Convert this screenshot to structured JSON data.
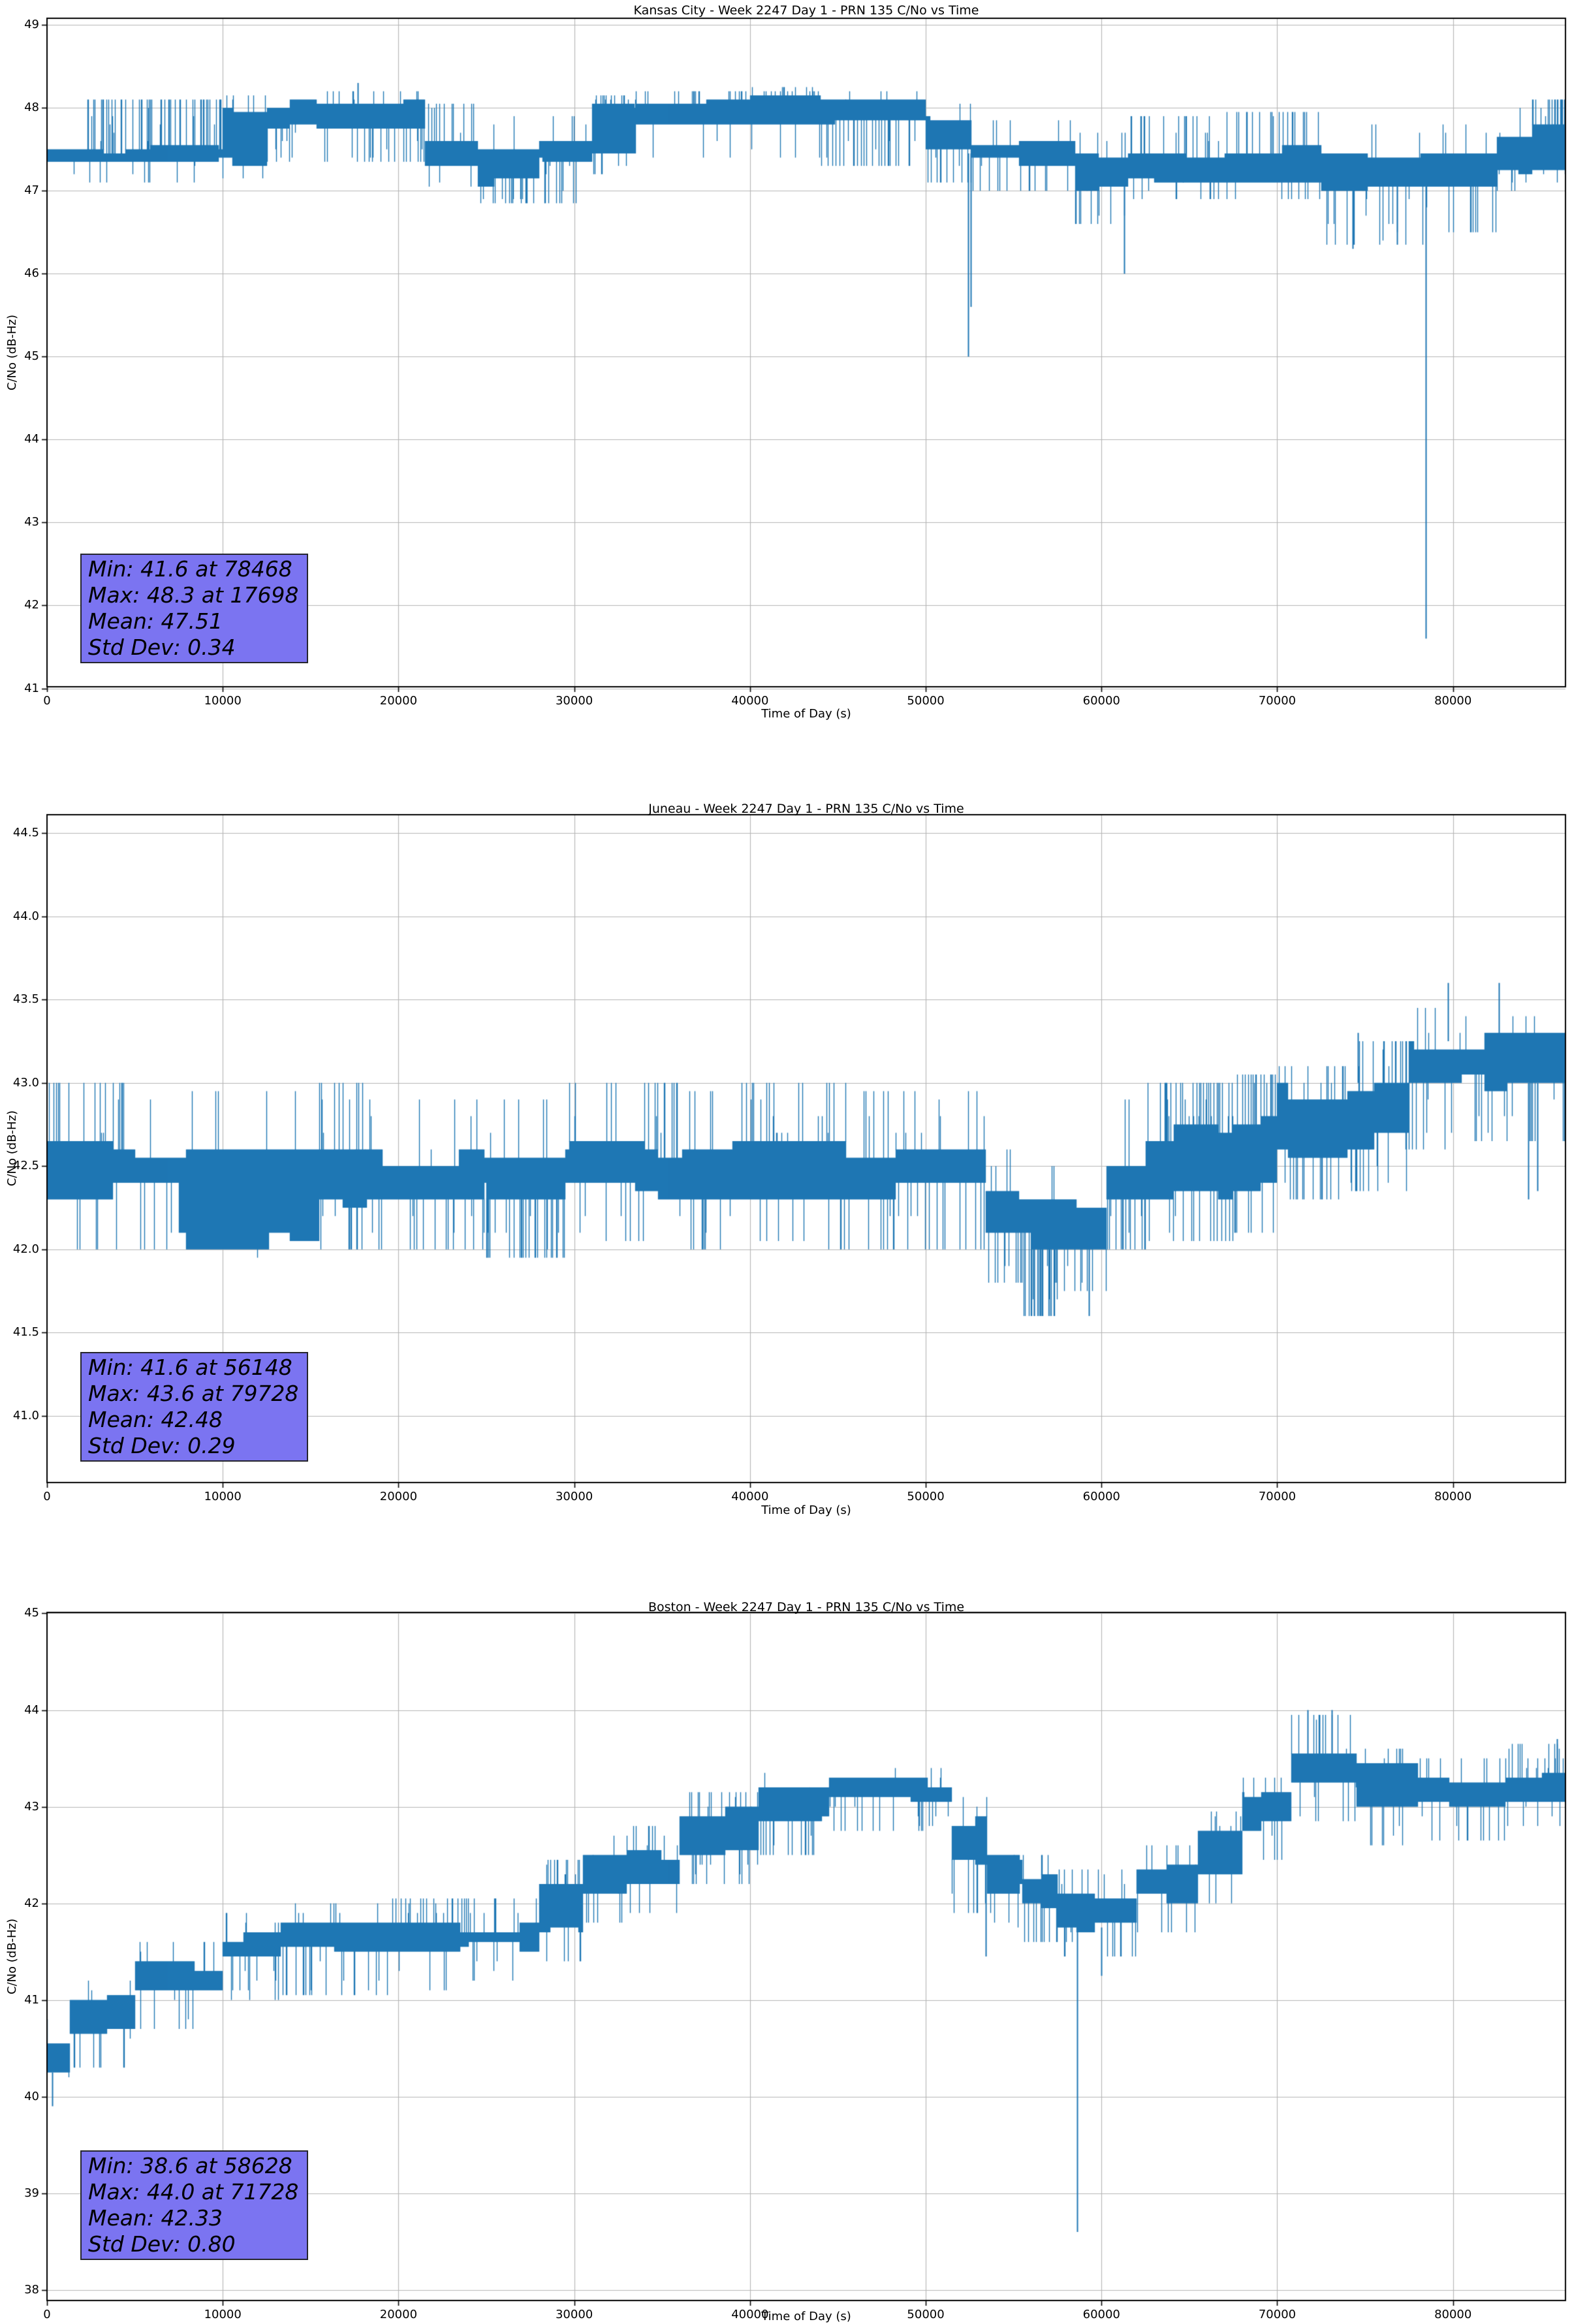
{
  "page": {
    "background": "#ffffff"
  },
  "chart_data": [
    {
      "type": "line",
      "title": "Kansas City - Week 2247 Day 1 - PRN 135 C/No vs Time",
      "xlabel": "Time of Day (s)",
      "ylabel": "C/No (dB-Hz)",
      "line_color": "#1f77b4",
      "grid": true,
      "grid_color": "#b4b4b4",
      "stats_box_color": "#7b74f1",
      "seed": 11,
      "xlim": [
        0,
        86400
      ],
      "ylim": [
        41.02,
        49.08
      ],
      "xticks": [
        "0",
        "10000",
        "20000",
        "30000",
        "40000",
        "50000",
        "60000",
        "70000",
        "80000"
      ],
      "yticks": [
        "41",
        "42",
        "43",
        "44",
        "45",
        "46",
        "47",
        "48",
        "49"
      ],
      "stats": {
        "min": 41.6,
        "min_time": 78468,
        "max": 48.3,
        "max_time": 17698,
        "mean": 47.51,
        "std_dev": 0.34
      },
      "stats_text": [
        "Min: 41.6 at 78468",
        "Max: 48.3 at 17698",
        "Mean: 47.51",
        "Std Dev: 0.34"
      ],
      "series_model": {
        "quantization_db": 0.1,
        "segments": [
          [
            0,
            2300,
            47.3,
            47.55,
            0.02,
            48.0,
            0.01,
            47.1
          ],
          [
            2300,
            10000,
            47.3,
            47.55,
            0.22,
            48.1,
            0.03,
            47.1
          ],
          [
            10000,
            12500,
            47.3,
            48.05,
            0.1,
            48.15,
            0.05,
            47.15
          ],
          [
            12500,
            17500,
            47.75,
            48.1,
            0.05,
            48.2,
            0.07,
            47.35
          ],
          [
            17500,
            21500,
            47.75,
            48.1,
            0.04,
            48.2,
            0.18,
            47.35
          ],
          [
            21500,
            24500,
            47.3,
            47.6,
            0.12,
            48.05,
            0.05,
            47.05
          ],
          [
            24500,
            28000,
            47.05,
            47.5,
            0.06,
            47.9,
            0.12,
            46.85
          ],
          [
            28000,
            31000,
            47.3,
            47.6,
            0.05,
            47.9,
            0.15,
            46.85
          ],
          [
            31000,
            33500,
            47.4,
            48.05,
            0.15,
            48.15,
            0.1,
            47.2
          ],
          [
            33500,
            40000,
            47.75,
            48.1,
            0.12,
            48.2,
            0.06,
            47.4
          ],
          [
            40000,
            44000,
            47.75,
            48.15,
            0.18,
            48.25,
            0.05,
            47.4
          ],
          [
            44000,
            50000,
            47.75,
            48.1,
            0.06,
            48.2,
            0.12,
            47.3
          ],
          [
            50000,
            52600,
            47.4,
            47.9,
            0.04,
            48.05,
            0.15,
            47.1
          ],
          [
            52600,
            58500,
            47.3,
            47.6,
            0.05,
            47.85,
            0.06,
            47.0
          ],
          [
            58500,
            61500,
            47.0,
            47.45,
            0.04,
            47.7,
            0.12,
            46.6
          ],
          [
            61500,
            67000,
            47.1,
            47.5,
            0.1,
            47.9,
            0.08,
            46.9
          ],
          [
            67000,
            72500,
            47.1,
            47.55,
            0.12,
            47.95,
            0.06,
            46.9
          ],
          [
            72500,
            78400,
            47.0,
            47.45,
            0.05,
            47.8,
            0.1,
            46.35
          ],
          [
            78400,
            82500,
            47.0,
            47.45,
            0.06,
            47.8,
            0.08,
            46.5
          ],
          [
            82500,
            84500,
            47.2,
            47.65,
            0.1,
            48.0,
            0.04,
            47.0
          ],
          [
            84500,
            86400,
            47.25,
            47.8,
            0.3,
            48.1,
            0.03,
            47.1
          ]
        ],
        "spikes": [
          [
            17698,
            48.3
          ],
          [
            52400,
            45.0
          ],
          [
            52560,
            45.6
          ],
          [
            61300,
            46.0
          ],
          [
            74300,
            46.3
          ],
          [
            76800,
            46.35
          ],
          [
            78468,
            41.6
          ]
        ]
      }
    },
    {
      "type": "line",
      "title": "Juneau - Week 2247 Day 1 - PRN 135 C/No vs Time",
      "xlabel": "Time of Day (s)",
      "ylabel": "C/No (dB-Hz)",
      "line_color": "#1f77b4",
      "grid": true,
      "grid_color": "#b4b4b4",
      "stats_box_color": "#7b74f1",
      "seed": 22,
      "xlim": [
        0,
        86400
      ],
      "ylim": [
        40.6,
        44.61
      ],
      "xticks": [
        "0",
        "10000",
        "20000",
        "30000",
        "40000",
        "50000",
        "60000",
        "70000",
        "80000"
      ],
      "yticks": [
        "41.0",
        "41.5",
        "42.0",
        "42.5",
        "43.0",
        "43.5",
        "44.0",
        "44.5"
      ],
      "stats": {
        "min": 41.6,
        "min_time": 56148,
        "max": 43.6,
        "max_time": 79728,
        "mean": 42.48,
        "std_dev": 0.29
      },
      "stats_text": [
        "Min: 41.6 at 56148",
        "Max: 43.6 at 79728",
        "Mean: 42.48",
        "Std Dev: 0.29"
      ],
      "series_model": {
        "quantization_db": 0.1,
        "segments": [
          [
            0,
            1200,
            42.3,
            42.65,
            0.05,
            43.0,
            0.02,
            42.1
          ],
          [
            1200,
            5000,
            42.3,
            42.65,
            0.12,
            43.0,
            0.04,
            42.0
          ],
          [
            5000,
            7500,
            42.3,
            42.6,
            0.03,
            42.9,
            0.1,
            42.0
          ],
          [
            7500,
            15500,
            42.0,
            42.6,
            0.03,
            42.95,
            0.02,
            41.95
          ],
          [
            15500,
            18200,
            42.25,
            42.6,
            0.18,
            43.0,
            0.1,
            42.0
          ],
          [
            18200,
            25000,
            42.3,
            42.6,
            0.04,
            42.9,
            0.08,
            42.0
          ],
          [
            25000,
            29500,
            42.2,
            42.6,
            0.03,
            42.9,
            0.25,
            41.95
          ],
          [
            29500,
            34000,
            42.3,
            42.65,
            0.06,
            43.0,
            0.06,
            42.05
          ],
          [
            34000,
            36000,
            42.3,
            42.6,
            0.15,
            43.0,
            0.05,
            42.05
          ],
          [
            36000,
            39000,
            42.3,
            42.6,
            0.05,
            42.95,
            0.1,
            42.0
          ],
          [
            39000,
            43500,
            42.3,
            42.65,
            0.12,
            43.0,
            0.05,
            42.05
          ],
          [
            43500,
            46000,
            42.3,
            42.65,
            0.15,
            43.0,
            0.08,
            42.0
          ],
          [
            46000,
            53400,
            42.3,
            42.65,
            0.05,
            42.95,
            0.12,
            42.0
          ],
          [
            53400,
            55300,
            42.0,
            42.4,
            0.03,
            42.6,
            0.15,
            41.8
          ],
          [
            55300,
            57600,
            42.0,
            42.35,
            0.02,
            42.6,
            0.3,
            41.6
          ],
          [
            57600,
            60300,
            42.0,
            42.35,
            0.03,
            42.6,
            0.1,
            41.75
          ],
          [
            60300,
            62500,
            42.3,
            42.6,
            0.05,
            42.9,
            0.15,
            42.0
          ],
          [
            62500,
            67500,
            42.3,
            42.75,
            0.25,
            43.0,
            0.1,
            42.05
          ],
          [
            67500,
            70000,
            42.35,
            42.8,
            0.3,
            43.05,
            0.08,
            42.1
          ],
          [
            70000,
            74000,
            42.55,
            43.0,
            0.15,
            43.1,
            0.15,
            42.3
          ],
          [
            74000,
            77500,
            42.6,
            43.05,
            0.12,
            43.25,
            0.12,
            42.35
          ],
          [
            77500,
            80500,
            42.9,
            43.3,
            0.08,
            43.45,
            0.1,
            42.6
          ],
          [
            80500,
            86400,
            42.95,
            43.3,
            0.05,
            43.4,
            0.08,
            42.65
          ]
        ],
        "spikes": [
          [
            56148,
            41.6
          ],
          [
            56600,
            41.6
          ],
          [
            59300,
            41.6
          ],
          [
            74600,
            43.3
          ],
          [
            79728,
            43.6
          ],
          [
            82600,
            43.6
          ],
          [
            84300,
            42.3
          ],
          [
            84800,
            42.35
          ]
        ]
      }
    },
    {
      "type": "line",
      "title": "Boston - Week 2247 Day 1 - PRN 135 C/No vs Time",
      "xlabel": "Time of Day (s)",
      "ylabel": "C/No (dB-Hz)",
      "line_color": "#1f77b4",
      "grid": true,
      "grid_color": "#b4b4b4",
      "stats_box_color": "#7b74f1",
      "seed": 33,
      "xlim": [
        0,
        86400
      ],
      "ylim": [
        37.89,
        45.01
      ],
      "xticks": [
        "0",
        "10000",
        "20000",
        "30000",
        "40000",
        "50000",
        "60000",
        "70000",
        "80000"
      ],
      "yticks": [
        "38",
        "39",
        "40",
        "41",
        "42",
        "43",
        "44",
        "45"
      ],
      "stats": {
        "min": 38.6,
        "min_time": 58628,
        "max": 44.0,
        "max_time": 71728,
        "mean": 42.33,
        "std_dev": 0.8
      },
      "stats_text": [
        "Min: 38.6 at 58628",
        "Max: 44.0 at 71728",
        "Mean: 42.33",
        "Std Dev: 0.80"
      ],
      "series_model": {
        "quantization_db": 0.1,
        "segments": [
          [
            0,
            1300,
            40.2,
            40.6,
            0.02,
            40.8,
            0.03,
            39.95
          ],
          [
            1300,
            5000,
            40.6,
            41.05,
            0.06,
            41.2,
            0.08,
            40.3
          ],
          [
            5000,
            10000,
            41.0,
            41.4,
            0.05,
            41.6,
            0.06,
            40.7
          ],
          [
            10000,
            13300,
            41.35,
            41.7,
            0.04,
            41.9,
            0.15,
            41.0
          ],
          [
            13300,
            19400,
            41.45,
            41.8,
            0.05,
            42.0,
            0.1,
            41.05
          ],
          [
            19400,
            24000,
            41.45,
            41.8,
            0.15,
            42.05,
            0.04,
            41.1
          ],
          [
            24000,
            28000,
            41.5,
            41.8,
            0.08,
            42.05,
            0.03,
            41.2
          ],
          [
            28000,
            30500,
            41.7,
            42.2,
            0.15,
            42.45,
            0.08,
            41.4
          ],
          [
            30500,
            33000,
            42.1,
            42.5,
            0.08,
            42.7,
            0.1,
            41.8
          ],
          [
            33000,
            36000,
            42.2,
            42.55,
            0.1,
            42.8,
            0.06,
            41.9
          ],
          [
            36000,
            40500,
            42.5,
            43.0,
            0.12,
            43.15,
            0.1,
            42.2
          ],
          [
            40500,
            44500,
            42.8,
            43.2,
            0.08,
            43.35,
            0.08,
            42.5
          ],
          [
            44500,
            51500,
            43.0,
            43.3,
            0.05,
            43.4,
            0.1,
            42.75
          ],
          [
            51500,
            53500,
            42.4,
            42.9,
            0.04,
            43.1,
            0.12,
            41.9
          ],
          [
            53500,
            55500,
            42.1,
            42.5,
            0.03,
            42.7,
            0.12,
            41.75
          ],
          [
            55500,
            57500,
            41.9,
            42.3,
            0.04,
            42.5,
            0.15,
            41.6
          ],
          [
            57500,
            62000,
            41.7,
            42.1,
            0.05,
            42.35,
            0.1,
            41.45
          ],
          [
            62000,
            65500,
            42.0,
            42.4,
            0.08,
            42.6,
            0.08,
            41.7
          ],
          [
            65500,
            68000,
            42.3,
            42.75,
            0.12,
            42.95,
            0.08,
            42.0
          ],
          [
            68000,
            70800,
            42.75,
            43.15,
            0.1,
            43.3,
            0.08,
            42.45
          ],
          [
            70800,
            74500,
            43.15,
            43.55,
            0.12,
            43.95,
            0.08,
            42.85
          ],
          [
            74500,
            78000,
            42.95,
            43.45,
            0.1,
            43.6,
            0.12,
            42.6
          ],
          [
            78000,
            83000,
            43.0,
            43.3,
            0.06,
            43.5,
            0.1,
            42.65
          ],
          [
            83000,
            86400,
            43.05,
            43.35,
            0.15,
            43.65,
            0.06,
            42.8
          ]
        ],
        "spikes": [
          [
            300,
            39.9
          ],
          [
            53400,
            41.45
          ],
          [
            58628,
            38.6
          ],
          [
            60000,
            41.25
          ],
          [
            71728,
            44.0
          ],
          [
            72400,
            43.95
          ],
          [
            73100,
            44.0
          ],
          [
            85900,
            43.7
          ]
        ]
      }
    }
  ]
}
